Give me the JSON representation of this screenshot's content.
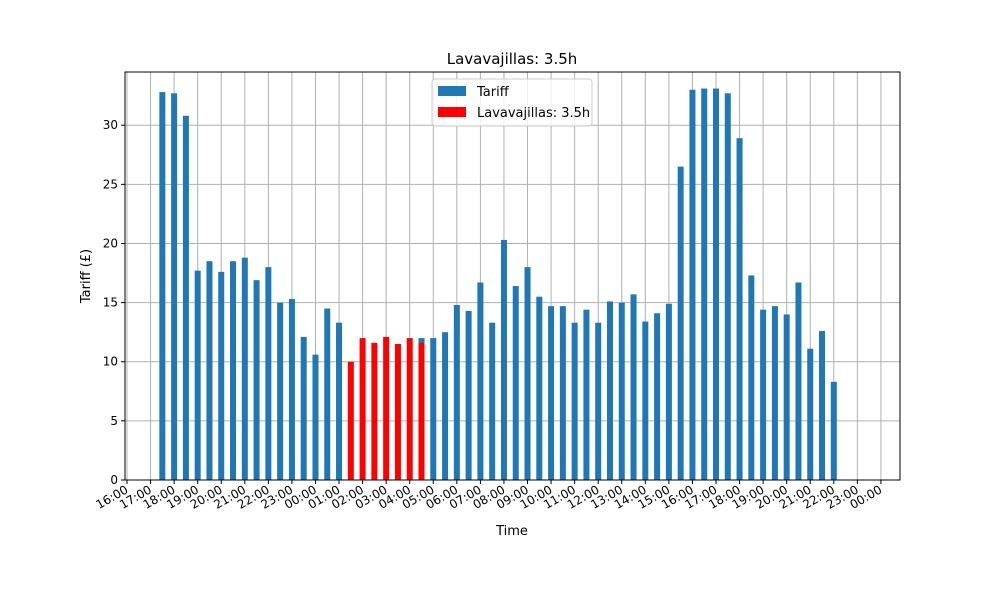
{
  "chart_data": {
    "type": "bar",
    "title": "Lavavajillas: 3.5h",
    "xlabel": "Time",
    "ylabel": "Tariff (£)",
    "ylim": [
      0,
      34.5
    ],
    "y_ticks": [
      0,
      5,
      10,
      15,
      20,
      25,
      30
    ],
    "x_tick_labels": [
      "16:00",
      "17:00",
      "18:00",
      "19:00",
      "20:00",
      "21:00",
      "22:00",
      "23:00",
      "00:00",
      "01:00",
      "02:00",
      "03:00",
      "04:00",
      "05:00",
      "06:00",
      "07:00",
      "08:00",
      "09:00",
      "10:00",
      "11:00",
      "12:00",
      "13:00",
      "14:00",
      "15:00",
      "16:00",
      "17:00",
      "18:00",
      "19:00",
      "20:00",
      "21:00",
      "22:00",
      "23:00",
      "00:00"
    ],
    "grid": true,
    "legend_position": "top-center",
    "legend": [
      {
        "label": "Tariff",
        "color": "#1f77b4"
      },
      {
        "label": "Lavavajillas: 3.5h",
        "color": "#ff0000"
      }
    ],
    "series": [
      {
        "name": "Tariff",
        "color": "#1f77b4",
        "points": [
          {
            "t": "17:30",
            "v": 32.8
          },
          {
            "t": "18:00",
            "v": 32.7
          },
          {
            "t": "18:30",
            "v": 30.8
          },
          {
            "t": "19:00",
            "v": 17.7
          },
          {
            "t": "19:30",
            "v": 18.5
          },
          {
            "t": "20:00",
            "v": 17.6
          },
          {
            "t": "20:30",
            "v": 18.5
          },
          {
            "t": "21:00",
            "v": 18.8
          },
          {
            "t": "21:30",
            "v": 16.9
          },
          {
            "t": "22:00",
            "v": 18.0
          },
          {
            "t": "22:30",
            "v": 15.0
          },
          {
            "t": "23:00",
            "v": 15.3
          },
          {
            "t": "23:30",
            "v": 12.1
          },
          {
            "t": "00:00",
            "v": 10.6
          },
          {
            "t": "00:30",
            "v": 14.5
          },
          {
            "t": "01:00",
            "v": 13.3
          },
          {
            "t": "04:30",
            "v": 12.0
          },
          {
            "t": "05:00",
            "v": 12.0
          },
          {
            "t": "05:30",
            "v": 12.5
          },
          {
            "t": "06:00",
            "v": 14.8
          },
          {
            "t": "06:30",
            "v": 14.3
          },
          {
            "t": "07:00",
            "v": 16.7
          },
          {
            "t": "07:30",
            "v": 13.3
          },
          {
            "t": "08:00",
            "v": 20.3
          },
          {
            "t": "08:30",
            "v": 16.4
          },
          {
            "t": "09:00",
            "v": 18.0
          },
          {
            "t": "09:30",
            "v": 15.5
          },
          {
            "t": "10:00",
            "v": 14.7
          },
          {
            "t": "10:30",
            "v": 14.7
          },
          {
            "t": "11:00",
            "v": 13.3
          },
          {
            "t": "11:30",
            "v": 14.4
          },
          {
            "t": "12:00",
            "v": 13.3
          },
          {
            "t": "12:30",
            "v": 15.1
          },
          {
            "t": "13:00",
            "v": 15.0
          },
          {
            "t": "13:30",
            "v": 15.7
          },
          {
            "t": "14:00",
            "v": 13.4
          },
          {
            "t": "14:30",
            "v": 14.1
          },
          {
            "t": "15:00",
            "v": 14.9
          },
          {
            "t": "15:30",
            "v": 26.5
          },
          {
            "t": "16:00",
            "v": 33.0
          },
          {
            "t": "16:30",
            "v": 33.1
          },
          {
            "t": "17:00",
            "v": 33.1
          },
          {
            "t": "17:30",
            "v": 32.7
          },
          {
            "t": "18:00",
            "v": 28.9
          },
          {
            "t": "18:30",
            "v": 17.3
          },
          {
            "t": "19:00",
            "v": 14.4
          },
          {
            "t": "19:30",
            "v": 14.7
          },
          {
            "t": "20:00",
            "v": 14.0
          },
          {
            "t": "20:30",
            "v": 16.7
          },
          {
            "t": "21:00",
            "v": 11.1
          },
          {
            "t": "21:30",
            "v": 12.6
          },
          {
            "t": "22:00",
            "v": 8.3
          }
        ]
      },
      {
        "name": "Lavavajillas: 3.5h",
        "color": "#ff0000",
        "points": [
          {
            "t": "01:30",
            "v": 10.0
          },
          {
            "t": "02:00",
            "v": 12.0
          },
          {
            "t": "02:30",
            "v": 11.6
          },
          {
            "t": "03:00",
            "v": 12.1
          },
          {
            "t": "03:30",
            "v": 11.5
          },
          {
            "t": "04:00",
            "v": 12.0
          },
          {
            "t": "04:30",
            "v": 11.6
          }
        ]
      }
    ]
  }
}
